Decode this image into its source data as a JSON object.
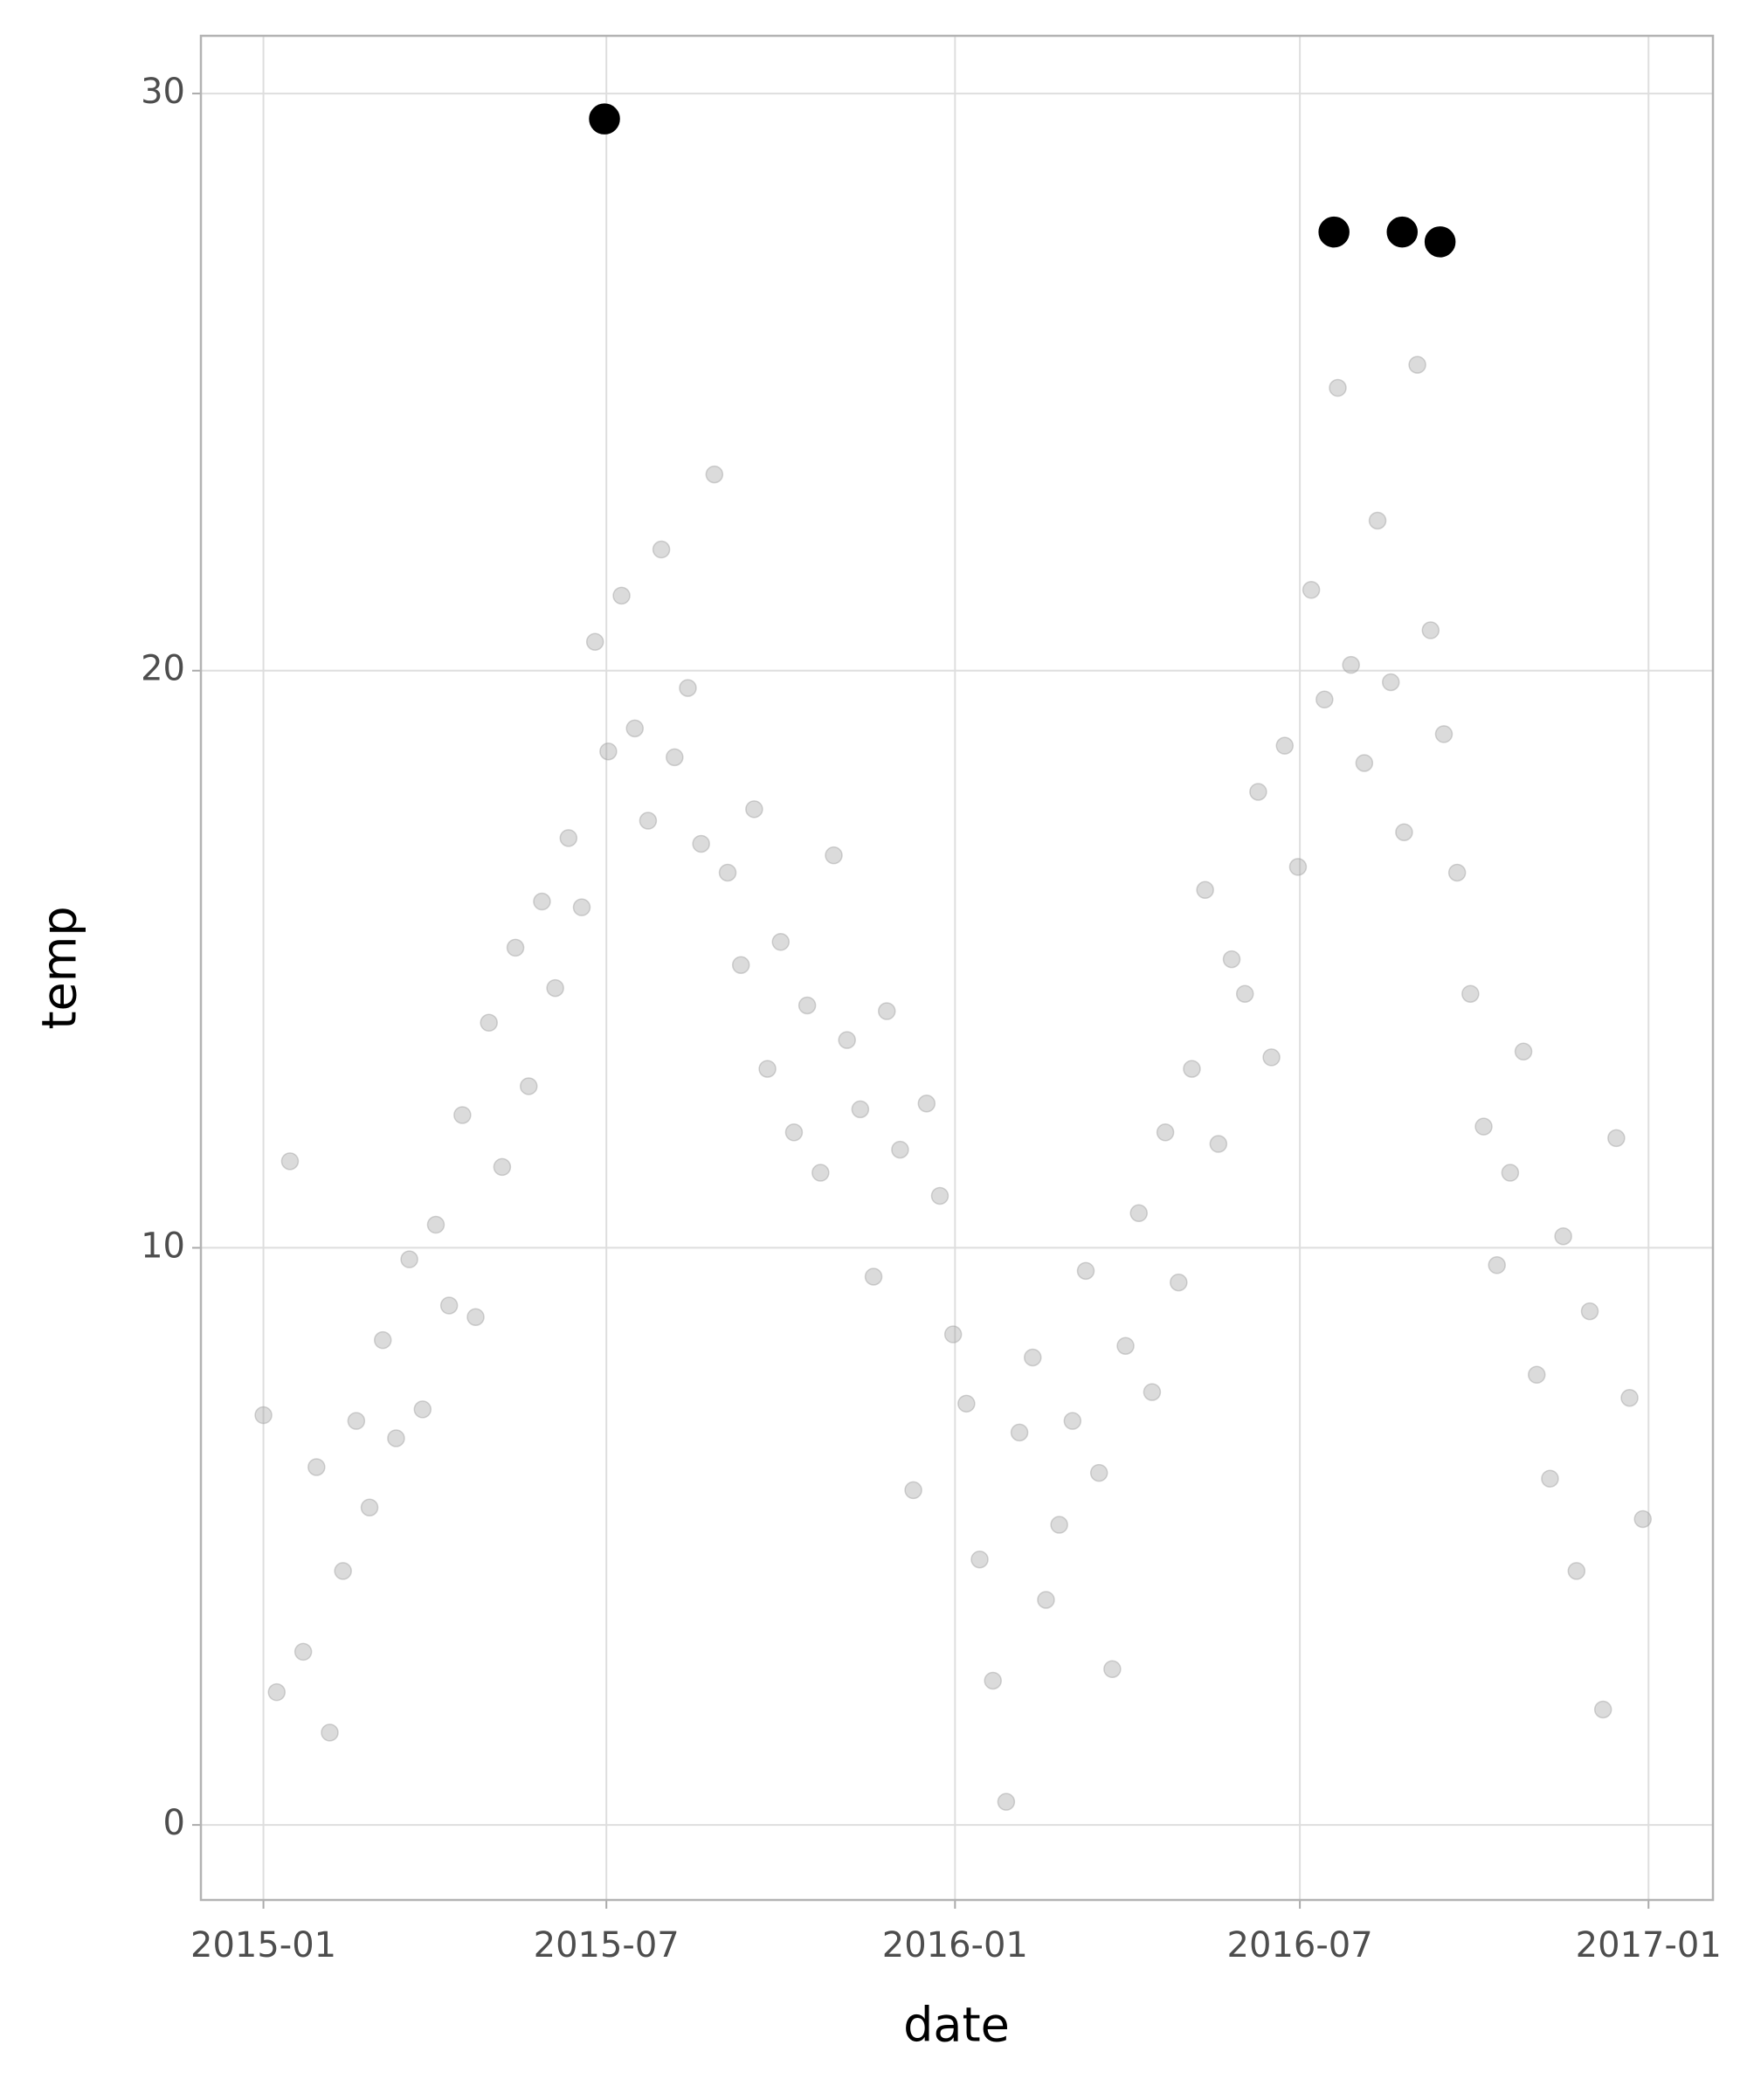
{
  "chart_data": {
    "type": "scatter",
    "x_label": "date",
    "y_label": "temp",
    "xlim": [
      "2014-11-29",
      "2017-02-04"
    ],
    "ylim": [
      -1.3,
      31
    ],
    "xticks": [
      {
        "value": "2015-01-01",
        "label": "2015-01"
      },
      {
        "value": "2015-07-01",
        "label": "2015-07"
      },
      {
        "value": "2016-01-01",
        "label": "2016-01"
      },
      {
        "value": "2016-07-01",
        "label": "2016-07"
      },
      {
        "value": "2017-01-01",
        "label": "2017-01"
      }
    ],
    "yticks": [
      0,
      10,
      20,
      30
    ],
    "grid": true,
    "series": [
      {
        "color": "#999999",
        "alpha": 0.35,
        "x": [
          "2015-01-01",
          "2015-01-08",
          "2015-01-15",
          "2015-01-22",
          "2015-01-29",
          "2015-02-05",
          "2015-02-12",
          "2015-02-19",
          "2015-02-26",
          "2015-03-05",
          "2015-03-12",
          "2015-03-19",
          "2015-03-26",
          "2015-04-02",
          "2015-04-09",
          "2015-04-16",
          "2015-04-23",
          "2015-04-30",
          "2015-05-07",
          "2015-05-14",
          "2015-05-21",
          "2015-05-28",
          "2015-06-04",
          "2015-06-11",
          "2015-06-18",
          "2015-06-25",
          "2015-07-02",
          "2015-07-09",
          "2015-07-16",
          "2015-07-23",
          "2015-07-30",
          "2015-08-06",
          "2015-08-13",
          "2015-08-20",
          "2015-08-27",
          "2015-09-03",
          "2015-09-10",
          "2015-09-17",
          "2015-09-24",
          "2015-10-01",
          "2015-10-08",
          "2015-10-15",
          "2015-10-22",
          "2015-10-29",
          "2015-11-05",
          "2015-11-12",
          "2015-11-19",
          "2015-11-26",
          "2015-12-03",
          "2015-12-10",
          "2015-12-17",
          "2015-12-24",
          "2015-12-31",
          "2016-01-07",
          "2016-01-14",
          "2016-01-21",
          "2016-01-28",
          "2016-02-04",
          "2016-02-11",
          "2016-02-18",
          "2016-02-25",
          "2016-03-03",
          "2016-03-10",
          "2016-03-17",
          "2016-03-24",
          "2016-03-31",
          "2016-04-07",
          "2016-04-14",
          "2016-04-21",
          "2016-04-28",
          "2016-05-05",
          "2016-05-12",
          "2016-05-19",
          "2016-05-26",
          "2016-06-02",
          "2016-06-09",
          "2016-06-16",
          "2016-06-23",
          "2016-06-30",
          "2016-07-07",
          "2016-07-14",
          "2016-07-21",
          "2016-07-28",
          "2016-08-04",
          "2016-08-11",
          "2016-08-18",
          "2016-08-25",
          "2016-09-01",
          "2016-09-08",
          "2016-09-15",
          "2016-09-22",
          "2016-09-29",
          "2016-10-06",
          "2016-10-13",
          "2016-10-20",
          "2016-10-27",
          "2016-11-03",
          "2016-11-10",
          "2016-11-17",
          "2016-11-24",
          "2016-12-01",
          "2016-12-08",
          "2016-12-15",
          "2016-12-22",
          "2016-12-29"
        ],
        "values": [
          7.1,
          2.3,
          11.5,
          3.0,
          6.2,
          1.6,
          4.4,
          7.0,
          5.5,
          8.4,
          6.7,
          9.8,
          7.2,
          10.4,
          9.0,
          12.3,
          8.8,
          13.9,
          11.4,
          15.2,
          12.8,
          16.0,
          14.5,
          17.1,
          15.9,
          20.5,
          18.6,
          21.3,
          19.0,
          17.4,
          22.1,
          18.5,
          19.7,
          17.0,
          23.4,
          16.5,
          14.9,
          17.6,
          13.1,
          15.3,
          12.0,
          14.2,
          11.3,
          16.8,
          13.6,
          12.4,
          9.5,
          14.1,
          11.7,
          5.8,
          12.5,
          10.9,
          8.5,
          7.3,
          4.6,
          2.5,
          0.4,
          6.8,
          8.1,
          3.9,
          5.2,
          7.0,
          9.6,
          6.1,
          2.7,
          8.3,
          10.6,
          7.5,
          12.0,
          9.4,
          13.1,
          16.2,
          11.8,
          15.0,
          14.4,
          17.9,
          13.3,
          18.7,
          16.6,
          21.4,
          19.5,
          24.9,
          20.1,
          18.4,
          22.6,
          19.8,
          17.2,
          25.3,
          20.7,
          18.9,
          16.5,
          14.4,
          12.1,
          9.7,
          11.3,
          13.4,
          7.8,
          6.0,
          10.2,
          4.4,
          8.9,
          2.0,
          11.9,
          7.4,
          5.3
        ]
      },
      {
        "color": "#000000",
        "alpha": 1,
        "x": [
          "2015-06-30",
          "2016-07-19",
          "2016-08-24",
          "2016-09-13"
        ],
        "values": [
          29.56,
          27.6,
          27.6,
          27.43
        ]
      }
    ]
  }
}
